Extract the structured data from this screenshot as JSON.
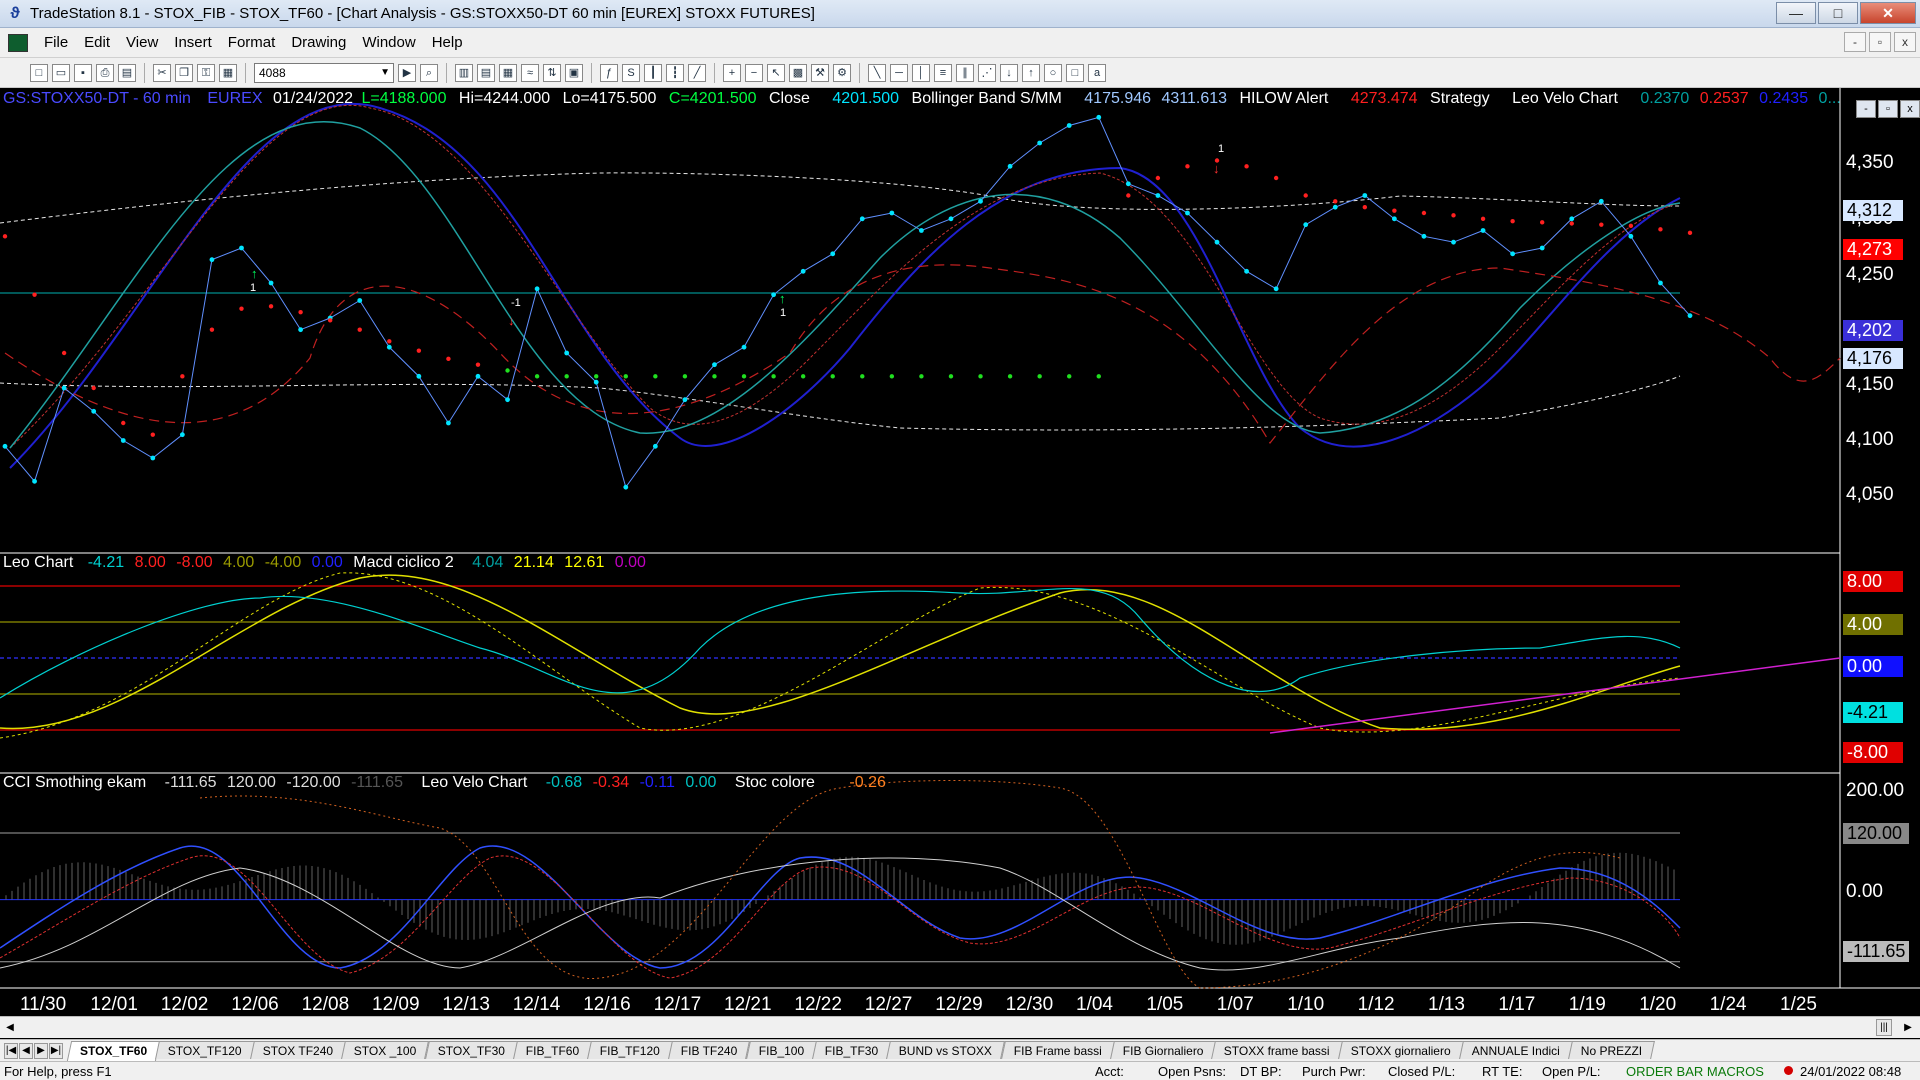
{
  "window": {
    "title": "TradeStation 8.1 - STOX_FIB - STOX_TF60 - [Chart Analysis - GS:STOXX50-DT  60 min  [EUREX] STOXX FUTURES]",
    "buttons": {
      "minimize": "—",
      "maximize": "□",
      "close": "✕"
    }
  },
  "menu": [
    "File",
    "Edit",
    "View",
    "Insert",
    "Format",
    "Drawing",
    "Window",
    "Help"
  ],
  "mdi_buttons": [
    "-",
    "▫",
    "x"
  ],
  "toolbar": {
    "symbol_combo": "4088"
  },
  "header": {
    "symbol": "GS:STOXX50-DT - 60 min",
    "exchange": "EUREX",
    "date": "01/24/2022",
    "last": "L=4188.000",
    "hi": "Hi=4244.000",
    "lo": "Lo=4175.500",
    "close": "C=4201.500",
    "close_label": "Close",
    "close_value": "4201.500",
    "bb_label": "Bollinger Band S/MM",
    "bb_low": "4175.946",
    "bb_high": "4311.613",
    "hilow_label": "HILOW Alert",
    "hilow_value": "4273.474",
    "strategy_label": "Strategy",
    "leo_label": "Leo Velo Chart",
    "leo_v1": "0.2370",
    "leo_v2": "0.2537",
    "leo_v3": "0.2435",
    "leo_v4": "0..."
  },
  "price_axis": {
    "ticks": [
      "4,350",
      "4,300",
      "4,250",
      "4,150",
      "4,100",
      "4,050"
    ],
    "tags": [
      {
        "label": "4,312",
        "bg": "#d8e8ff",
        "fg": "#000000"
      },
      {
        "label": "4,273",
        "bg": "#ff0000",
        "fg": "#ffffff"
      },
      {
        "label": "4,202",
        "bg": "#3a2fd8",
        "fg": "#ffffff"
      },
      {
        "label": "4,176",
        "bg": "#d8e8ff",
        "fg": "#000000"
      }
    ]
  },
  "panel2": {
    "title": "Leo Chart",
    "vals": [
      {
        "t": "-4.21",
        "c": "#00d0d0"
      },
      {
        "t": "8.00",
        "c": "#ff2020"
      },
      {
        "t": "-8.00",
        "c": "#ff2020"
      },
      {
        "t": "4.00",
        "c": "#9a9a00"
      },
      {
        "t": "-4.00",
        "c": "#9a9a00"
      },
      {
        "t": "0.00",
        "c": "#2020ff"
      }
    ],
    "title2": "Macd ciclico 2",
    "vals2": [
      {
        "t": "4.04",
        "c": "#00a0a0"
      },
      {
        "t": "21.14",
        "c": "#ffff00"
      },
      {
        "t": "12.61",
        "c": "#ffff00"
      },
      {
        "t": "0.00",
        "c": "#c000c0"
      }
    ],
    "tags": [
      {
        "label": "8.00",
        "bg": "#e00000",
        "fg": "#ffffff"
      },
      {
        "label": "4.00",
        "bg": "#707000",
        "fg": "#ffffff"
      },
      {
        "label": "0.00",
        "bg": "#1010ff",
        "fg": "#ffffff"
      },
      {
        "label": "-4.21",
        "bg": "#00e0e0",
        "fg": "#000000"
      },
      {
        "label": "-8.00",
        "bg": "#e00000",
        "fg": "#ffffff"
      }
    ]
  },
  "panel3": {
    "title": "CCI Smothing ekam",
    "vals": [
      {
        "t": "-111.65",
        "c": "#dddddd"
      },
      {
        "t": "120.00",
        "c": "#dddddd"
      },
      {
        "t": "-120.00",
        "c": "#dddddd"
      },
      {
        "t": "-111.65",
        "c": "#555555"
      }
    ],
    "title2": "Leo Velo Chart",
    "vals2": [
      {
        "t": "-0.68",
        "c": "#00c0c0"
      },
      {
        "t": "-0.34",
        "c": "#ff2020"
      },
      {
        "t": "-0.11",
        "c": "#2020ff"
      },
      {
        "t": "0.00",
        "c": "#00c0c0"
      }
    ],
    "title3": "Stoc colore",
    "val3": "-0.26",
    "ticks": [
      "200.00",
      "0.00"
    ],
    "tags": [
      {
        "label": "120.00",
        "bg": "#888888",
        "fg": "#000000"
      },
      {
        "label": "-111.65",
        "bg": "#bbbbbb",
        "fg": "#000000"
      }
    ]
  },
  "chart_data": {
    "type": "line",
    "x_labels": [
      "11/30",
      "12/01",
      "12/02",
      "12/06",
      "12/08",
      "12/09",
      "12/13",
      "12/14",
      "12/16",
      "12/17",
      "12/21",
      "12/22",
      "12/27",
      "12/29",
      "12/30",
      "1/04",
      "1/05",
      "1/07",
      "1/10",
      "1/12",
      "1/13",
      "1/17",
      "1/19",
      "1/20",
      "1/24",
      "1/25"
    ],
    "price": {
      "ylim": [
        4020,
        4380
      ],
      "series": [
        {
          "name": "Close",
          "color": "#00e5ff",
          "values": [
            4090,
            4060,
            4140,
            4120,
            4095,
            4080,
            4100,
            4250,
            4260,
            4230,
            4190,
            4200,
            4215,
            4175,
            4150,
            4110,
            4150,
            4130,
            4225,
            4170,
            4145,
            4055,
            4090,
            4130,
            4160,
            4175,
            4220,
            4240,
            4255,
            4285,
            4290,
            4275,
            4285,
            4300,
            4330,
            4350,
            4365,
            4372,
            4315,
            4305,
            4290,
            4265,
            4240,
            4225,
            4280,
            4295,
            4305,
            4285,
            4270,
            4265,
            4275,
            4255,
            4260,
            4285,
            4300,
            4270,
            4230,
            4202
          ]
        },
        {
          "name": "HILOW Alert",
          "color": "#ff2020",
          "values": [
            4270,
            4220,
            4170,
            4140,
            4110,
            4100,
            4150,
            4190,
            4208,
            4210,
            4205,
            4198,
            4190,
            4180,
            4172,
            4165,
            4160,
            4155,
            4150,
            4150,
            4150,
            4150,
            4150,
            4150,
            4150,
            4150,
            4150,
            4150,
            4150,
            4150,
            4150,
            4150,
            4150,
            4150,
            4150,
            4150,
            4150,
            4150,
            4305,
            4320,
            4330,
            4335,
            4330,
            4320,
            4305,
            4300,
            4295,
            4292,
            4290,
            4288,
            4285,
            4283,
            4282,
            4281,
            4280,
            4279,
            4276,
            4273
          ]
        }
      ],
      "bollinger_upper": 4311.613,
      "bollinger_lower": 4175.946
    },
    "leo_chart": {
      "ylim": [
        -10,
        10
      ],
      "levels": [
        8,
        4,
        0,
        -4,
        -8
      ],
      "last": -4.21
    },
    "cci": {
      "ylim": [
        -150,
        210
      ],
      "levels": [
        120,
        0,
        -111.65
      ],
      "last": -111.65
    }
  },
  "tabs": [
    "STOX_TF60",
    "STOX_TF120",
    "STOX TF240",
    "STOX _100",
    "STOX_TF30",
    "FIB_TF60",
    "FIB_TF120",
    "FIB TF240",
    "FIB_100",
    "FIB_TF30",
    "BUND vs STOXX",
    "FIB Frame bassi",
    "FIB Giornaliero",
    "STOXX frame bassi",
    "STOXX giornaliero",
    "ANNUALE Indici",
    "No PREZZI"
  ],
  "status": {
    "help": "For Help, press F1",
    "acct": "Acct:",
    "open_psns": "Open Psns:",
    "dt_bp": "DT BP:",
    "purch_pwr": "Purch Pwr:",
    "closed_pl": "Closed P/L:",
    "rt_te": "RT TE:",
    "open_pl": "Open P/L:",
    "macros": "ORDER BAR  MACROS",
    "datetime": "24/01/2022 08:48"
  }
}
